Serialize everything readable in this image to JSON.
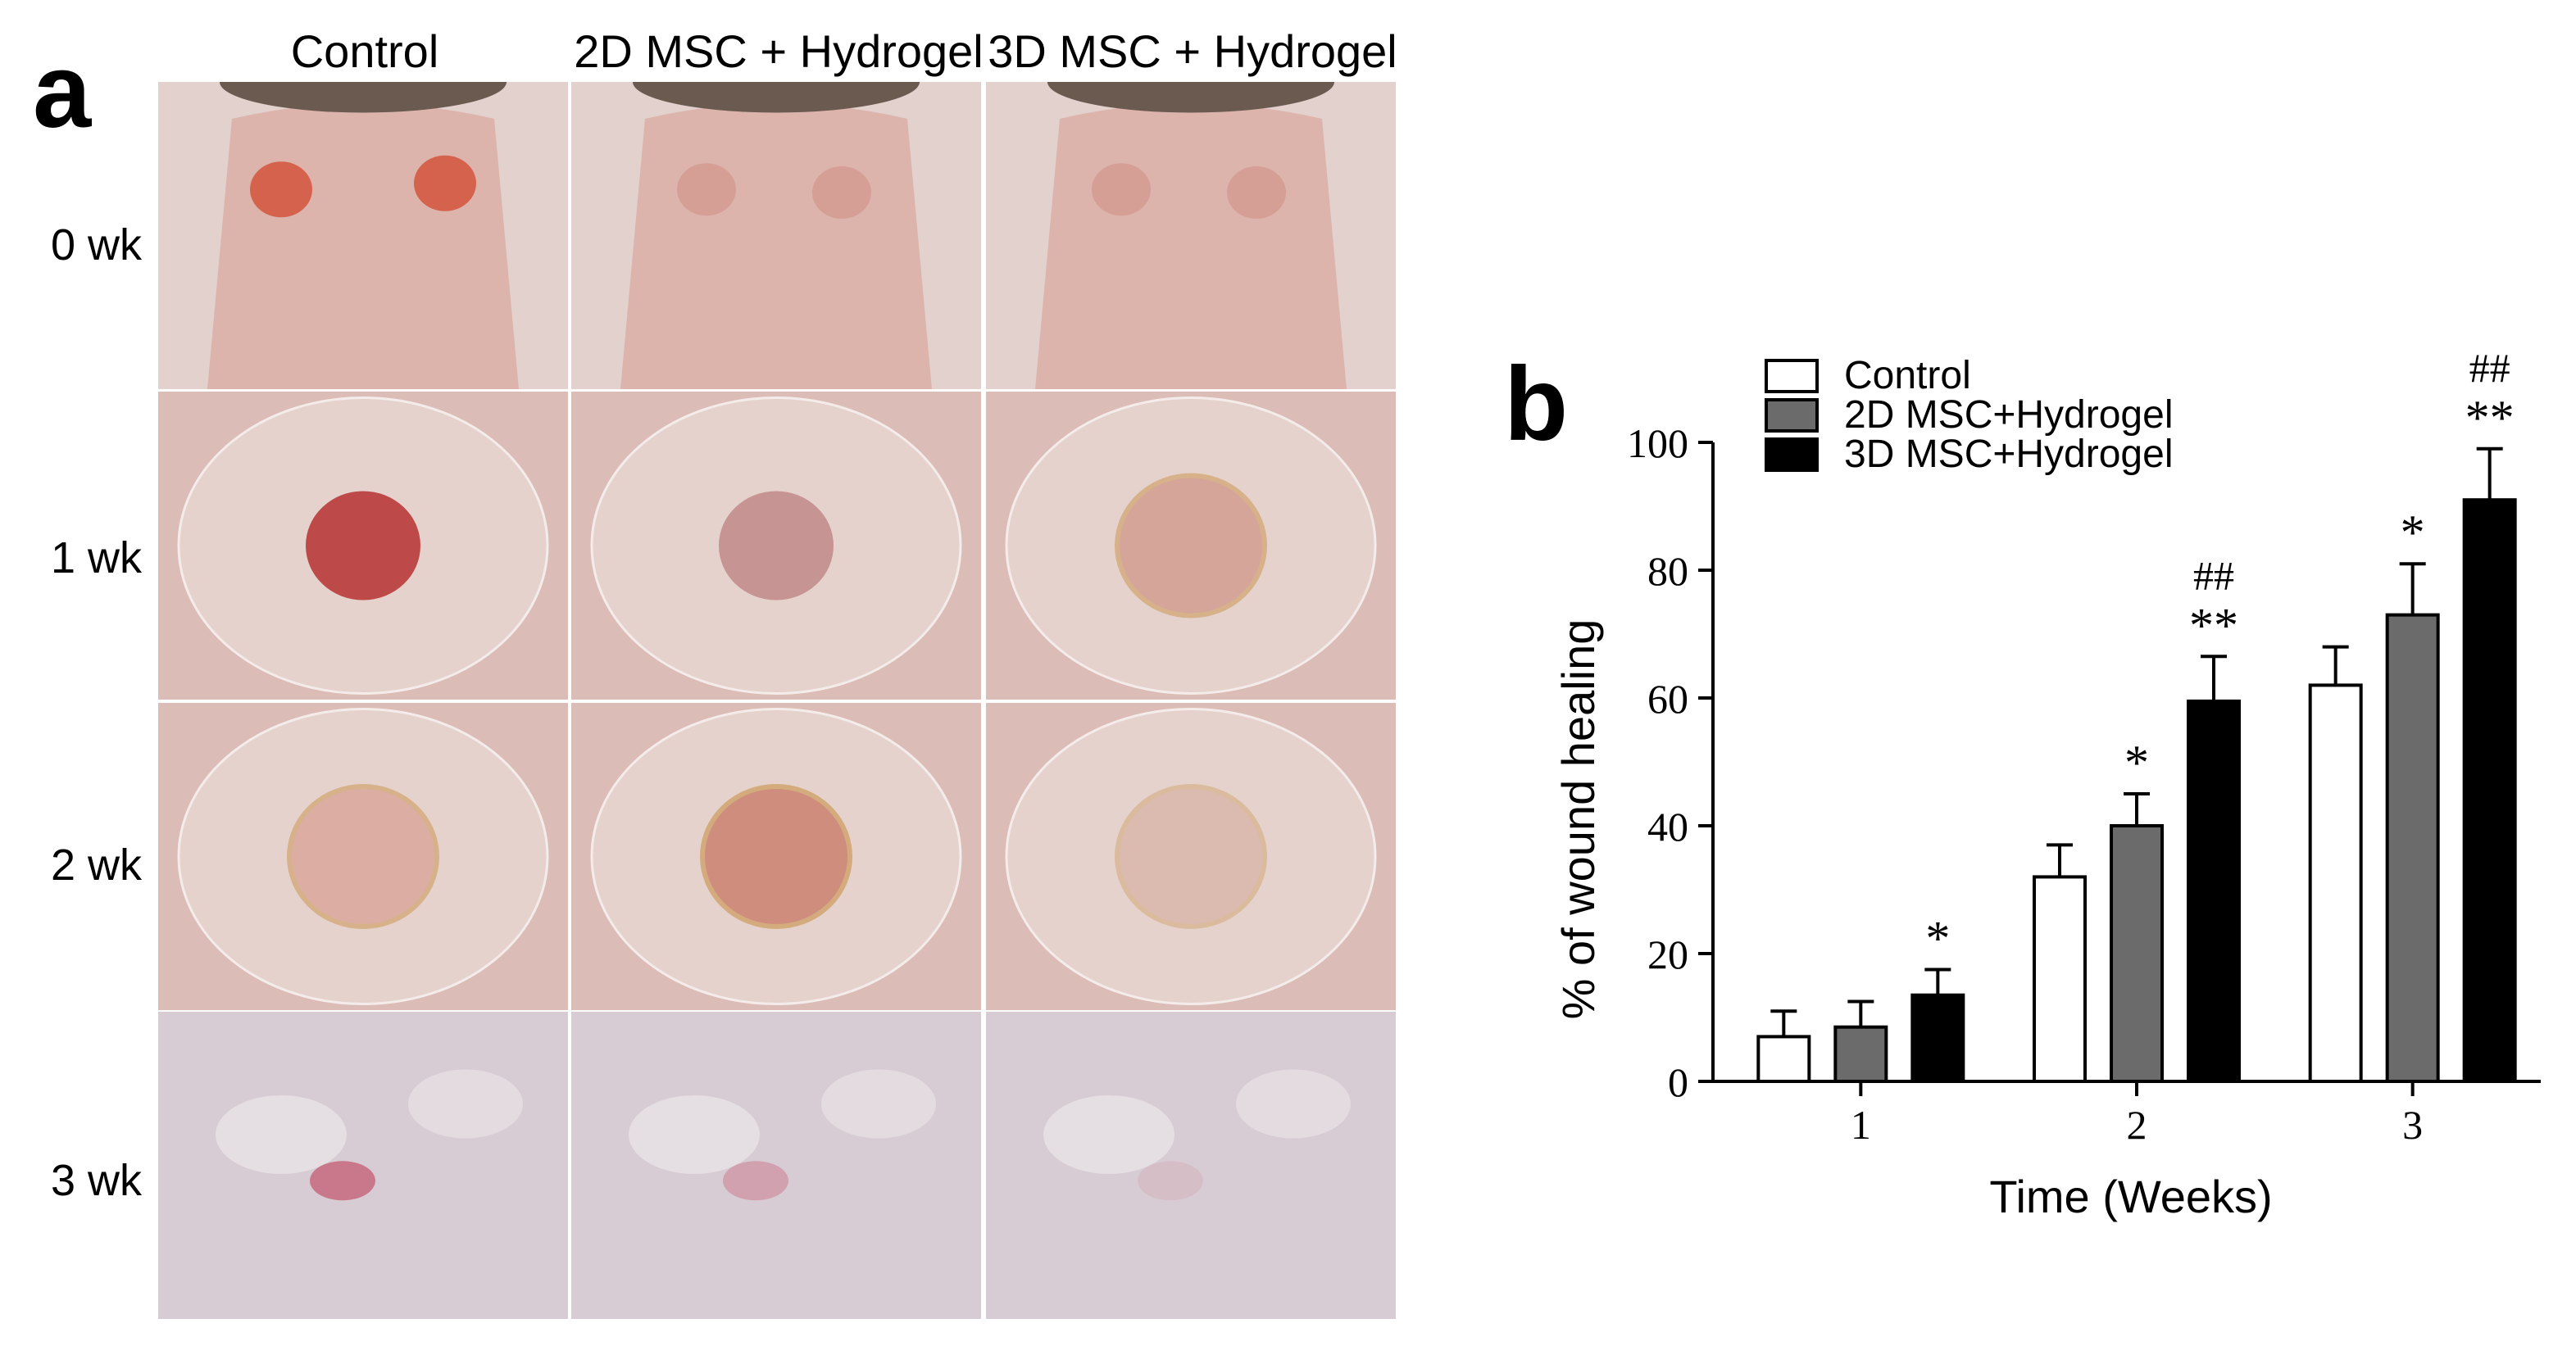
{
  "panel_a": {
    "letter": "a",
    "columns": [
      "Control",
      "2D MSC + Hydrogel",
      "3D MSC + Hydrogel"
    ],
    "rows": [
      "0 wk",
      "1 wk",
      "2 wk",
      "3 wk"
    ]
  },
  "panel_b": {
    "letter": "b"
  },
  "chart_data": {
    "type": "bar",
    "categories": [
      "1",
      "2",
      "3"
    ],
    "series": [
      {
        "name": "Control",
        "values": [
          7,
          32,
          62
        ],
        "errors": [
          4,
          5,
          6
        ],
        "color": "#ffffff",
        "annotations": [
          "",
          "",
          ""
        ]
      },
      {
        "name": "2D MSC+Hydrogel",
        "values": [
          8.5,
          40,
          73
        ],
        "errors": [
          4,
          5,
          8
        ],
        "color": "#6b6b6b",
        "annotations": [
          "",
          "*",
          "*"
        ]
      },
      {
        "name": "3D MSC+Hydrogel",
        "values": [
          13.5,
          59.5,
          91
        ],
        "errors": [
          4,
          7,
          8
        ],
        "color": "#000000",
        "annotations": [
          "*",
          "**",
          "**"
        ],
        "annotations2": [
          "",
          "##",
          "##"
        ]
      }
    ],
    "xlabel": "Time (Weeks)",
    "ylabel": "% of wound healing",
    "ylim": [
      0,
      100
    ],
    "yticks": [
      0,
      20,
      40,
      60,
      80,
      100
    ],
    "legend_position": "top-left",
    "grid": false
  }
}
